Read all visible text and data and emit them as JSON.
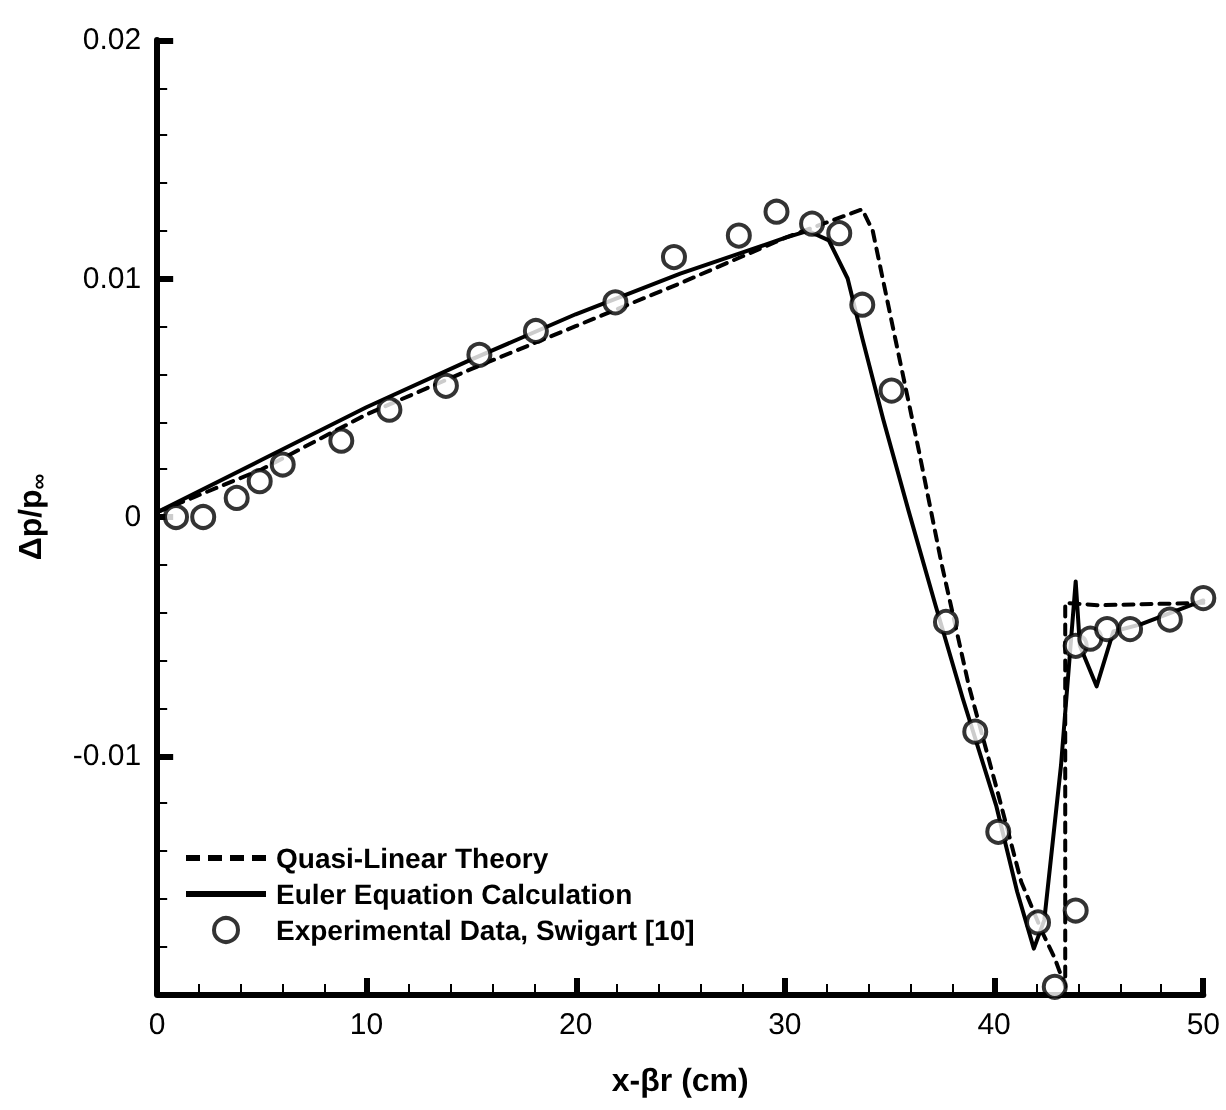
{
  "chart_data": {
    "type": "line",
    "xlabel": "x-βr (cm)",
    "ylabel": "Δp/p$_{∞}$",
    "xlim": [
      0,
      50
    ],
    "xticks": [
      0,
      10,
      20,
      30,
      40,
      50
    ],
    "ylim": [
      -0.02,
      0.02
    ],
    "yticks": [
      -0.01,
      0,
      0.01,
      0.02
    ],
    "grid": false,
    "legend": "bottom left",
    "series": [
      {
        "name": "Quasi-Linear Theory",
        "color": "#000000",
        "line_style": "dashed",
        "marker": "none",
        "x": [
          0,
          5,
          10,
          15,
          20,
          25,
          30,
          33.7,
          34.2,
          35.2,
          36.4,
          37.5,
          38.8,
          40.1,
          41.3,
          42.3,
          42.9,
          43.4,
          43.4,
          45,
          50
        ],
        "values": [
          0.0002,
          0.002,
          0.0043,
          0.0062,
          0.008,
          0.0098,
          0.0117,
          0.0129,
          0.012,
          0.0078,
          0.0028,
          -0.002,
          -0.0071,
          -0.0113,
          -0.0153,
          -0.0174,
          -0.0185,
          -0.0197,
          -0.0036,
          -0.0037,
          -0.0036
        ]
      },
      {
        "name": "Euler Equation Calculation",
        "color": "#000000",
        "line_style": "solid",
        "marker": "none",
        "x": [
          0,
          5,
          10,
          15,
          20,
          25,
          30,
          31.1,
          32.1,
          33.0,
          33.7,
          34.7,
          35.9,
          37.2,
          38.5,
          40.1,
          41.1,
          41.9,
          42.4,
          43.2,
          43.9,
          44.1,
          44.9,
          45.7,
          47,
          50
        ],
        "values": [
          0.0002,
          0.0024,
          0.0046,
          0.0066,
          0.0085,
          0.0102,
          0.0117,
          0.012,
          0.0116,
          0.01,
          0.0075,
          0.0041,
          0.0003,
          -0.0037,
          -0.0076,
          -0.0121,
          -0.0157,
          -0.0181,
          -0.0169,
          -0.0104,
          -0.0027,
          -0.0054,
          -0.0071,
          -0.0048,
          -0.0045,
          -0.0035
        ]
      },
      {
        "name": "Experimental Data, Swigart [10]",
        "type": "scatter",
        "color": "#000000",
        "marker": "circle",
        "x": [
          0.9,
          2.2,
          3.8,
          4.9,
          6.0,
          8.8,
          11.1,
          13.8,
          15.4,
          18.1,
          21.9,
          24.7,
          27.8,
          29.6,
          31.3,
          32.6,
          33.7,
          35.1,
          37.7,
          39.1,
          40.2,
          42.1,
          42.9,
          43.9,
          43.9,
          44.6,
          45.4,
          46.5,
          48.4,
          50
        ],
        "values": [
          0.0,
          0.0,
          0.0008,
          0.0015,
          0.0022,
          0.0032,
          0.0045,
          0.0055,
          0.0068,
          0.0078,
          0.009,
          0.0109,
          0.0118,
          0.0128,
          0.0123,
          0.0119,
          0.0089,
          0.0053,
          -0.0044,
          -0.009,
          -0.0132,
          -0.017,
          -0.0197,
          -0.0165,
          -0.0054,
          -0.0051,
          -0.0047,
          -0.0047,
          -0.0043,
          -0.0034
        ]
      }
    ]
  }
}
